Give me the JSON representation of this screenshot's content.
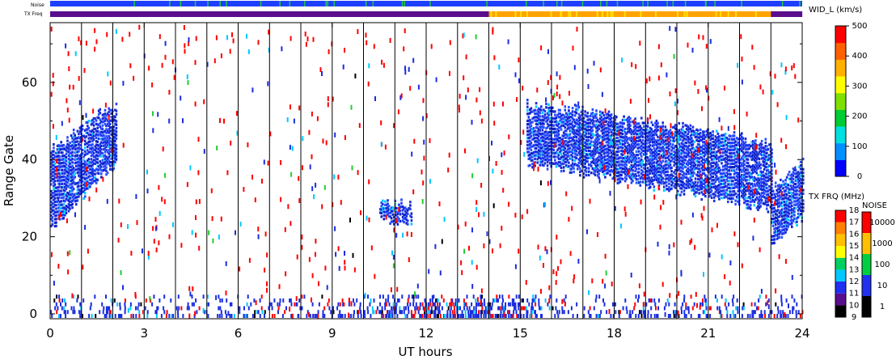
{
  "strip_labels": {
    "noise": "Noise",
    "tx_freq": "TX Freq"
  },
  "chart_data": {
    "type": "heatmap",
    "xlabel": "UT hours",
    "ylabel": "Range Gate",
    "xlim": [
      0,
      24
    ],
    "ylim": [
      0,
      75
    ],
    "x_ticks": [
      "0",
      "3",
      "6",
      "9",
      "12",
      "15",
      "18",
      "21",
      "24"
    ],
    "y_ticks": [
      "0",
      "20",
      "40",
      "60"
    ],
    "x_tick_values": [
      0,
      3,
      6,
      9,
      12,
      15,
      18,
      21,
      24
    ],
    "y_tick_values": [
      0,
      20,
      40,
      60
    ],
    "hour_lines": [
      1,
      2,
      3,
      4,
      5,
      6,
      7,
      8,
      9,
      10,
      11,
      12,
      13,
      14,
      15,
      16,
      17,
      18,
      19,
      20,
      21,
      22,
      23
    ],
    "echo_regions": [
      {
        "name": "early-band",
        "t_start": 0.0,
        "t_end": 2.1,
        "gate_low_start": 23,
        "gate_low_end": 40,
        "gate_high_start": 43,
        "gate_high_end": 55,
        "color": "#1e2fe0"
      },
      {
        "name": "main-band",
        "t_start": 15.2,
        "t_end": 23.0,
        "gate_low_start": 40,
        "gate_low_end": 28,
        "gate_high_start": 55,
        "gate_high_end": 45,
        "color": "#1a2de0"
      },
      {
        "name": "late-band",
        "t_start": 23.0,
        "t_end": 24.0,
        "gate_low_start": 19,
        "gate_low_end": 26,
        "gate_high_start": 33,
        "gate_high_end": 40,
        "color": "#1e2fe0"
      },
      {
        "name": "mid-patch",
        "t_start": 10.5,
        "t_end": 11.5,
        "gate_low_start": 25,
        "gate_low_end": 25,
        "gate_high_start": 29,
        "gate_high_end": 29,
        "color": "#2040e8"
      }
    ],
    "noise_strip": {
      "color": "#1f3fff",
      "accent": "#22c83c"
    },
    "tx_freq_strip": [
      {
        "t_start": 0,
        "t_end": 14.0,
        "color": "#5a0d8c"
      },
      {
        "t_start": 14.0,
        "t_end": 23.0,
        "color": "#ffa300"
      },
      {
        "t_start": 23.0,
        "t_end": 24.0,
        "color": "#5a0d8c"
      }
    ],
    "colorbars": [
      {
        "title": "WID_L (km/s)",
        "ticks": [
          "0",
          "100",
          "200",
          "300",
          "400",
          "500"
        ],
        "tick_values": [
          0,
          100,
          200,
          300,
          400,
          500
        ],
        "range": [
          0,
          500
        ],
        "colors": [
          "#0000ff",
          "#0090ff",
          "#00e0e0",
          "#00cc33",
          "#80e000",
          "#ffff00",
          "#ffb000",
          "#ff6000",
          "#ff0000"
        ]
      },
      {
        "title": "TX FRQ (MHz)",
        "ticks": [
          "9",
          "10",
          "11",
          "12",
          "13",
          "14",
          "15",
          "16",
          "17",
          "18"
        ],
        "bands": [
          "#000000",
          "#5a0d8c",
          "#2030f0",
          "#00c8ff",
          "#00d060",
          "#ffff00",
          "#ffc000",
          "#ff8000",
          "#ff0000"
        ]
      },
      {
        "title": "NOISE",
        "ticks": [
          "1",
          "10",
          "100",
          "1000",
          "10000"
        ],
        "bands": [
          "#000000",
          "#2030f0",
          "#00d040",
          "#ffc000",
          "#ff0000"
        ]
      }
    ]
  }
}
